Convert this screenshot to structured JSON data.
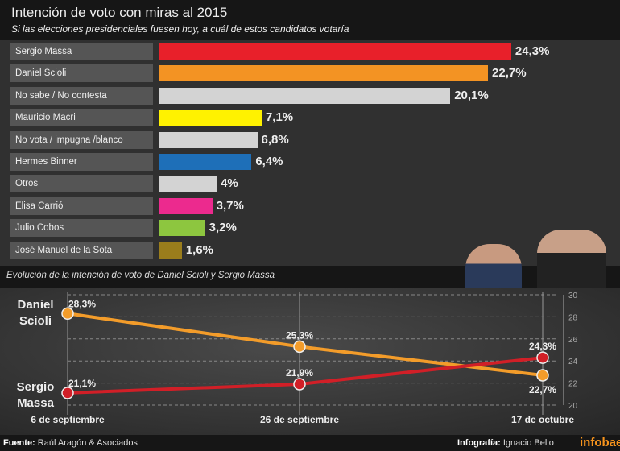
{
  "header": {
    "title": "Intención de voto con miras al 2015",
    "subtitle": "Si las elecciones presidenciales fuesen hoy, a cuál de estos candidatos votaría"
  },
  "chart_data": [
    {
      "type": "bar",
      "orientation": "horizontal",
      "categories": [
        "Sergio Massa",
        "Daniel Scioli",
        "No sabe / No contesta",
        "Mauricio Macri",
        "No vota / impugna /blanco",
        "Hermes Binner",
        "Otros",
        "Elisa Carrió",
        "Julio Cobos",
        "José Manuel de la Sota"
      ],
      "values": [
        24.3,
        22.7,
        20.1,
        7.1,
        6.8,
        6.4,
        4,
        3.7,
        3.2,
        1.6
      ],
      "labels": [
        "24,3%",
        "22,7%",
        "20,1%",
        "7,1%",
        "6,8%",
        "6,4%",
        "4%",
        "3,7%",
        "3,2%",
        "1,6%"
      ],
      "colors": [
        "#e8202a",
        "#f39323",
        "#d3d3d3",
        "#fff200",
        "#d3d3d3",
        "#1e6fb8",
        "#d3d3d3",
        "#ec2a8e",
        "#8dc63f",
        "#9a7d1c"
      ]
    },
    {
      "type": "line",
      "title": "Evolución de la intención de voto de Daniel Scioli y Sergio Massa",
      "categories": [
        "6 de septiembre",
        "26 de septiembre",
        "17 de octubre"
      ],
      "ylim": [
        20,
        30
      ],
      "yticks": [
        "20",
        "22",
        "24",
        "26",
        "28",
        "30"
      ],
      "series": [
        {
          "name": "Daniel Scioli",
          "values": [
            28.3,
            25.3,
            22.7
          ],
          "labels": [
            "28,3%",
            "25,3%",
            "22,7%"
          ],
          "color": "#f39c2a"
        },
        {
          "name": "Sergio Massa",
          "values": [
            21.1,
            21.9,
            24.3
          ],
          "labels": [
            "21,1%",
            "21,9%",
            "24,3%"
          ],
          "color": "#d11f27"
        }
      ]
    }
  ],
  "series_names": {
    "scioli_1": "Daniel",
    "scioli_2": "Scioli",
    "massa_1": "Sergio",
    "massa_2": "Massa"
  },
  "footer": {
    "source_label": "Fuente:",
    "source": "Raúl Aragón & Asociados",
    "credit_label": "Infografía:",
    "credit": "Ignacio Bello",
    "brand": "infobae",
    "brand_color": "#f7941d"
  }
}
